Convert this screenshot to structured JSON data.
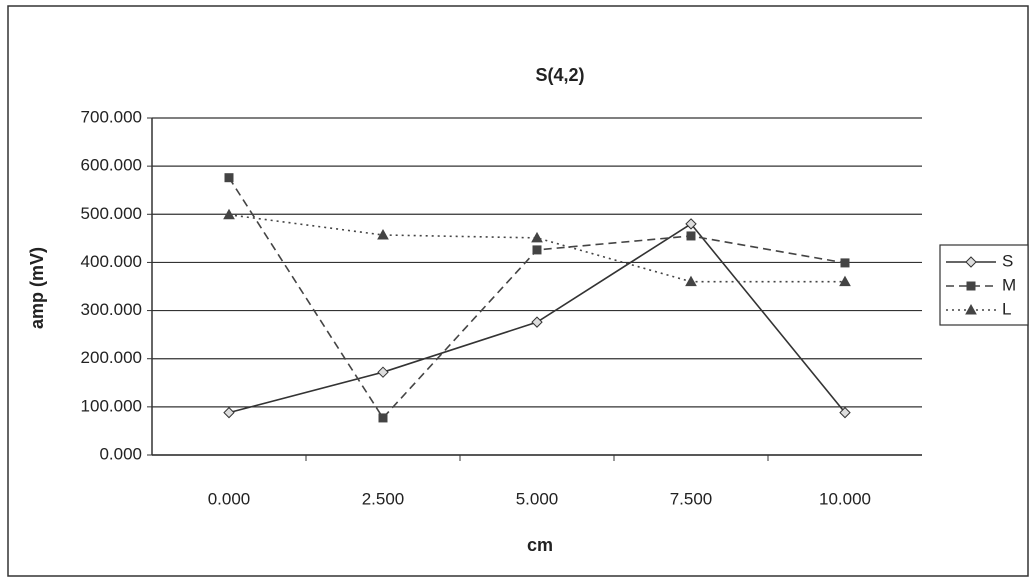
{
  "chart_data": {
    "type": "line",
    "title": "S(4,2)",
    "x_label": "cm",
    "y_label": "amp (mV)",
    "categories": [
      "0.000",
      "2.500",
      "5.000",
      "7.500",
      "10.000"
    ],
    "series": [
      {
        "name": "S",
        "color": "#333333",
        "dash": "solid",
        "marker": "diamond",
        "values": [
          88,
          172,
          276,
          480,
          88
        ]
      },
      {
        "name": "M",
        "color": "#444444",
        "dash": "dashed",
        "marker": "square",
        "values": [
          576,
          77,
          426,
          455,
          399
        ]
      },
      {
        "name": "L",
        "color": "#444444",
        "dash": "dotted",
        "marker": "triangle",
        "values": [
          499,
          457,
          451,
          360,
          360
        ]
      }
    ],
    "ylim": [
      0,
      700
    ],
    "yticks": [
      {
        "value": 0,
        "label": "0.000"
      },
      {
        "value": 100,
        "label": "100.000"
      },
      {
        "value": 200,
        "label": "200.000"
      },
      {
        "value": 300,
        "label": "300.000"
      },
      {
        "value": 400,
        "label": "400.000"
      },
      {
        "value": 500,
        "label": "500.000"
      },
      {
        "value": 600,
        "label": "600.000"
      },
      {
        "value": 700,
        "label": "700.000"
      }
    ],
    "grid": true,
    "legend": "right"
  }
}
